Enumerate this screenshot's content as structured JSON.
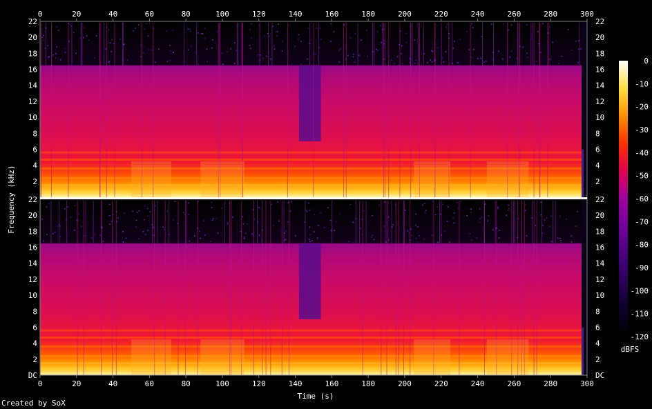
{
  "chart_data": {
    "type": "heatmap",
    "title": "",
    "xlabel": "Time (s)",
    "ylabel": "Frequency (kHz)",
    "colorbar_label": "dBFS",
    "xlim": [
      0,
      300
    ],
    "ylim": [
      0,
      22
    ],
    "x_ticks": [
      "0",
      "20",
      "40",
      "60",
      "80",
      "100",
      "120",
      "140",
      "160",
      "180",
      "200",
      "220",
      "240",
      "260",
      "280",
      "300"
    ],
    "y_ticks_top": [
      "2",
      "4",
      "6",
      "8",
      "10",
      "12",
      "14",
      "16",
      "18",
      "20",
      "22"
    ],
    "y_ticks_bottom": [
      "DC",
      "2",
      "4",
      "6",
      "8",
      "10",
      "12",
      "14",
      "16",
      "18",
      "20",
      "22"
    ],
    "colorbar_ticks": [
      "0",
      "-10",
      "-20",
      "-30",
      "-40",
      "-50",
      "-60",
      "-70",
      "-80",
      "-90",
      "-100",
      "-110",
      "-120"
    ],
    "colorbar_range": [
      -120,
      0
    ],
    "channels": 2,
    "audio_end_s": 297,
    "lowpass_khz": 16.5,
    "quiet_section_s": [
      142,
      154
    ],
    "colormap": [
      "#000000",
      "#1a0040",
      "#5a0090",
      "#a000a0",
      "#e00050",
      "#ff3000",
      "#ff9000",
      "#ffe040",
      "#ffffff"
    ]
  },
  "footer": {
    "credit": "Created by SoX"
  }
}
